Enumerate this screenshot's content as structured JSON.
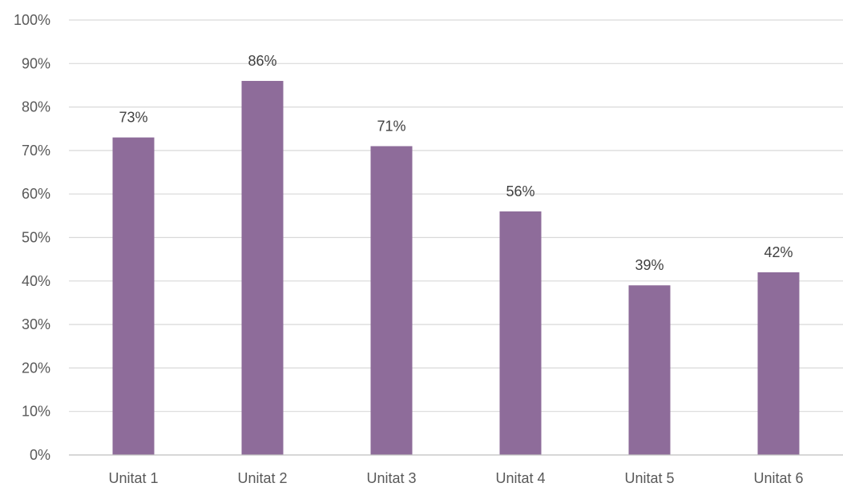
{
  "chart_data": {
    "type": "bar",
    "categories": [
      "Unitat 1",
      "Unitat 2",
      "Unitat 3",
      "Unitat 4",
      "Unitat 5",
      "Unitat 6"
    ],
    "values": [
      73,
      86,
      71,
      56,
      39,
      42
    ],
    "value_labels": [
      "73%",
      "86%",
      "71%",
      "56%",
      "39%",
      "42%"
    ],
    "ylim": [
      0,
      100
    ],
    "yticks": [
      0,
      10,
      20,
      30,
      40,
      50,
      60,
      70,
      80,
      90,
      100
    ],
    "ytick_labels": [
      "0%",
      "10%",
      "20%",
      "30%",
      "40%",
      "50%",
      "60%",
      "70%",
      "80%",
      "90%",
      "100%"
    ],
    "grid": true,
    "legend": "none",
    "bar_color": "#8e6c9a"
  }
}
